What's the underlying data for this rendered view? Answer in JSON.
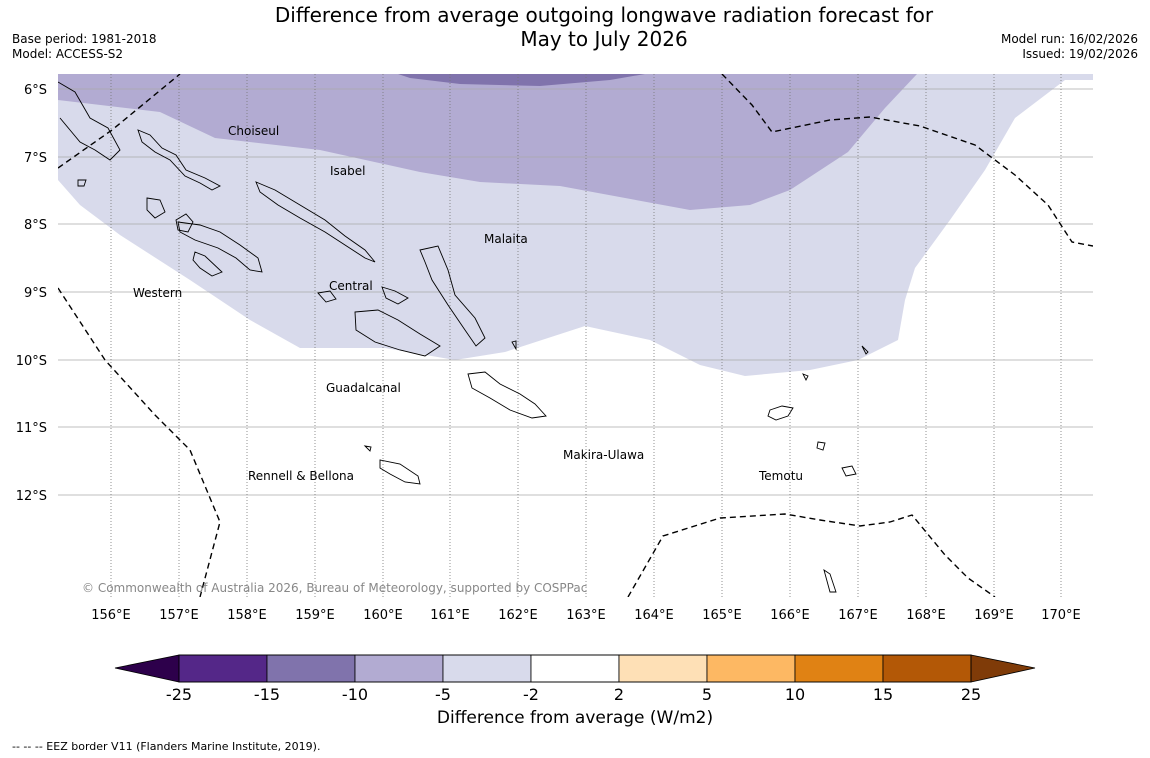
{
  "header": {
    "title_line1": "Difference from average outgoing longwave radiation forecast for",
    "title_line2": "May to July 2026",
    "base_period": "Base period: 1981-2018",
    "model": "Model: ACCESS-S2",
    "model_run": "Model run: 16/02/2026",
    "issued": "Issued: 19/02/2026"
  },
  "map": {
    "lat_labels": [
      "6°S",
      "7°S",
      "8°S",
      "9°S",
      "10°S",
      "11°S",
      "12°S"
    ],
    "lon_labels": [
      "156°E",
      "157°E",
      "158°E",
      "159°E",
      "160°E",
      "161°E",
      "162°E",
      "163°E",
      "164°E",
      "165°E",
      "166°E",
      "167°E",
      "168°E",
      "169°E",
      "170°E"
    ],
    "place_labels": [
      "Choiseul",
      "Isabel",
      "Malaita",
      "Western",
      "Central",
      "Guadalcanal",
      "Makira-Ulawa",
      "Rennell & Bellona",
      "Temotu"
    ],
    "copyright": "© Commonwealth of Australia 2026, Bureau of Meteorology, supported by COSPPac"
  },
  "colorbar": {
    "ticks": [
      "-25",
      "-15",
      "-10",
      "-5",
      "-2",
      "2",
      "5",
      "10",
      "15",
      "25"
    ],
    "colors": [
      "#542788",
      "#8073ac",
      "#b2abd2",
      "#d8daeb",
      "#ffffff",
      "#fee0b6",
      "#fdb863",
      "#e08214",
      "#b35806"
    ],
    "extend_low_color": "#2d004b",
    "extend_high_color": "#7f3b08",
    "label": "Difference from average (W/m2)"
  },
  "footer": {
    "eez_note": "--  --  -- EEZ border V11 (Flanders Marine Institute, 2019)."
  }
}
